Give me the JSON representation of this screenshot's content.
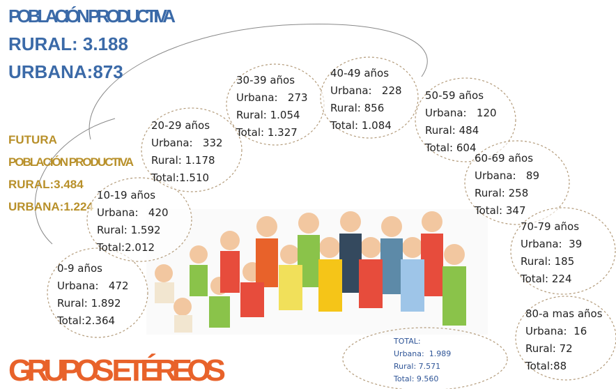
{
  "header": {
    "title": "POBLACIÓN PRODUCTIVA",
    "rural": "RURAL: 3.188",
    "urbana": "URBANA:873"
  },
  "future": {
    "line1": "FUTURA",
    "line2": "POBLACIÓN PRODUCTIVA",
    "rural": "RURAL:3.484",
    "urbana": "URBANA:1.224"
  },
  "groups": [
    {
      "label": "0-9 años",
      "urbana": "Urbana:   472",
      "rural": "Rural: 1.892",
      "total": "Total:2.364"
    },
    {
      "label": "10-19 años",
      "urbana": "Urbana:   420",
      "rural": "Rural: 1.592",
      "total": "Total:2.012"
    },
    {
      "label": "20-29 años",
      "urbana": "Urbana:   332",
      "rural": "Rural: 1.178",
      "total": "Total:1.510"
    },
    {
      "label": "30-39 años",
      "urbana": "Urbana:   273",
      "rural": "Rural: 1.054",
      "total": "Total: 1.327"
    },
    {
      "label": "40-49 años",
      "urbana": "Urbana:   228",
      "rural": "Rural: 856",
      "total": "Total: 1.084"
    },
    {
      "label": "50-59 años",
      "urbana": "Urbana:   120",
      "rural": "Rural: 484",
      "total": "Total: 604"
    },
    {
      "label": "60-69 años",
      "urbana": "Urbana:   89",
      "rural": "Rural: 258",
      "total": "Total: 347"
    },
    {
      "label": "70-79 años",
      "urbana": "Urbana:  39",
      "rural": "Rural: 185",
      "total": "Total: 224"
    },
    {
      "label": "80-a mas años",
      "urbana": "Urbana:  16",
      "rural": "Rural: 72",
      "total": "Total:88"
    }
  ],
  "total": {
    "label": "TOTAL:",
    "urbana": "Urbana:  1.989",
    "rural": "Rural: 7.571",
    "total": "Total: 9.560"
  },
  "footer": {
    "title": "GRUPOS ETÉREOS"
  }
}
